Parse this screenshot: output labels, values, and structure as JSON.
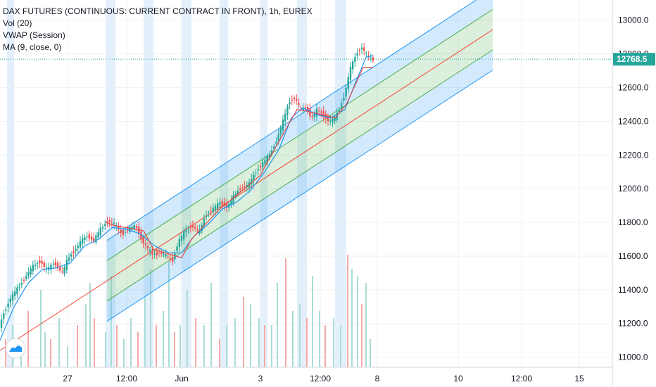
{
  "chart_data": {
    "type": "candlestick",
    "title": "DAX FUTURES (CONTINUOUS: CURRENT CONTRACT IN FRONT), 1h, EUREX",
    "indicators": [
      "Vol (20)",
      "VWAP (Session)",
      "MA (9, close, 0)"
    ],
    "last_price": "12768.5",
    "last_price_value": 12768.5,
    "ylim": [
      10940,
      13120
    ],
    "xlim": [
      0,
      870
    ],
    "y_ticks": [
      {
        "value": 11000,
        "label": "11000.0"
      },
      {
        "value": 11200,
        "label": "11200.0"
      },
      {
        "value": 11400,
        "label": "11400.0"
      },
      {
        "value": 11600,
        "label": "11600.0"
      },
      {
        "value": 11800,
        "label": "11800.0"
      },
      {
        "value": 12000,
        "label": "12000.0"
      },
      {
        "value": 12200,
        "label": "12200.0"
      },
      {
        "value": 12400,
        "label": "12400.0"
      },
      {
        "value": 12600,
        "label": "12600.0"
      },
      {
        "value": 12800,
        "label": "12800.0"
      },
      {
        "value": 13000,
        "label": "13000.0"
      }
    ],
    "x_ticks": [
      {
        "t": 96,
        "label": "27"
      },
      {
        "t": 180,
        "label": "12:00"
      },
      {
        "t": 258,
        "label": "Jun"
      },
      {
        "t": 370,
        "label": "3"
      },
      {
        "t": 455,
        "label": "12:00"
      },
      {
        "t": 536,
        "label": "8"
      },
      {
        "t": 651,
        "label": "10"
      },
      {
        "t": 741,
        "label": "12:00"
      },
      {
        "t": 823,
        "label": "15"
      }
    ],
    "session_bands": [
      [
        10,
        20
      ],
      [
        150,
        164
      ],
      [
        204,
        218
      ],
      [
        258,
        272
      ],
      [
        312,
        324
      ],
      [
        370,
        380
      ],
      [
        422,
        436
      ],
      [
        476,
        492
      ]
    ],
    "price_path": [
      [
        0,
        11150
      ],
      [
        8,
        11260
      ],
      [
        18,
        11350
      ],
      [
        30,
        11420
      ],
      [
        40,
        11480
      ],
      [
        50,
        11540
      ],
      [
        60,
        11570
      ],
      [
        70,
        11520
      ],
      [
        80,
        11560
      ],
      [
        92,
        11500
      ],
      [
        100,
        11590
      ],
      [
        110,
        11640
      ],
      [
        120,
        11700
      ],
      [
        128,
        11720
      ],
      [
        136,
        11690
      ],
      [
        146,
        11760
      ],
      [
        156,
        11810
      ],
      [
        166,
        11790
      ],
      [
        176,
        11730
      ],
      [
        186,
        11760
      ],
      [
        196,
        11780
      ],
      [
        204,
        11700
      ],
      [
        212,
        11650
      ],
      [
        220,
        11610
      ],
      [
        230,
        11620
      ],
      [
        240,
        11600
      ],
      [
        248,
        11570
      ],
      [
        256,
        11680
      ],
      [
        266,
        11750
      ],
      [
        276,
        11780
      ],
      [
        286,
        11740
      ],
      [
        296,
        11850
      ],
      [
        306,
        11880
      ],
      [
        316,
        11920
      ],
      [
        326,
        11890
      ],
      [
        336,
        11960
      ],
      [
        346,
        12010
      ],
      [
        356,
        12020
      ],
      [
        366,
        12100
      ],
      [
        376,
        12150
      ],
      [
        386,
        12200
      ],
      [
        396,
        12290
      ],
      [
        406,
        12410
      ],
      [
        414,
        12520
      ],
      [
        422,
        12540
      ],
      [
        430,
        12470
      ],
      [
        438,
        12480
      ],
      [
        446,
        12420
      ],
      [
        454,
        12470
      ],
      [
        462,
        12440
      ],
      [
        470,
        12400
      ],
      [
        478,
        12410
      ],
      [
        486,
        12480
      ],
      [
        494,
        12580
      ],
      [
        500,
        12700
      ],
      [
        506,
        12770
      ],
      [
        512,
        12820
      ],
      [
        518,
        12840
      ],
      [
        524,
        12790
      ],
      [
        530,
        12768
      ]
    ],
    "ma_path": [
      [
        0,
        11100
      ],
      [
        20,
        11300
      ],
      [
        40,
        11440
      ],
      [
        60,
        11520
      ],
      [
        80,
        11530
      ],
      [
        100,
        11560
      ],
      [
        120,
        11660
      ],
      [
        140,
        11700
      ],
      [
        160,
        11770
      ],
      [
        180,
        11760
      ],
      [
        200,
        11730
      ],
      [
        220,
        11660
      ],
      [
        240,
        11620
      ],
      [
        258,
        11620
      ],
      [
        276,
        11720
      ],
      [
        296,
        11790
      ],
      [
        316,
        11880
      ],
      [
        336,
        11920
      ],
      [
        356,
        11990
      ],
      [
        376,
        12100
      ],
      [
        396,
        12230
      ],
      [
        414,
        12420
      ],
      [
        430,
        12480
      ],
      [
        450,
        12440
      ],
      [
        470,
        12420
      ],
      [
        490,
        12470
      ],
      [
        506,
        12640
      ],
      [
        520,
        12780
      ],
      [
        530,
        12790
      ]
    ],
    "vwap_path": [
      [
        150,
        11800
      ],
      [
        164,
        11780
      ],
      [
        204,
        11750
      ],
      [
        218,
        11640
      ],
      [
        258,
        11590
      ],
      [
        272,
        11700
      ],
      [
        312,
        11880
      ],
      [
        324,
        11920
      ],
      [
        370,
        12080
      ],
      [
        380,
        12160
      ],
      [
        422,
        12470
      ],
      [
        436,
        12460
      ],
      [
        476,
        12420
      ],
      [
        492,
        12500
      ],
      [
        516,
        12720
      ],
      [
        530,
        12720
      ]
    ],
    "regression_channel": {
      "t_start": 0,
      "t_end": 700,
      "mid_start": 11040,
      "slope_per_unit": 2.72,
      "inner_offset": 120,
      "outer_offset": 240,
      "fill_start": 152
    },
    "volume": [
      [
        8,
        40
      ],
      [
        18,
        60
      ],
      [
        30,
        30
      ],
      [
        40,
        80
      ],
      [
        58,
        110
      ],
      [
        64,
        50
      ],
      [
        72,
        40
      ],
      [
        84,
        70
      ],
      [
        96,
        30
      ],
      [
        110,
        60
      ],
      [
        122,
        90
      ],
      [
        128,
        120
      ],
      [
        134,
        70
      ],
      [
        150,
        50
      ],
      [
        158,
        130
      ],
      [
        166,
        60
      ],
      [
        176,
        40
      ],
      [
        186,
        70
      ],
      [
        196,
        50
      ],
      [
        206,
        100
      ],
      [
        214,
        140
      ],
      [
        222,
        60
      ],
      [
        232,
        80
      ],
      [
        240,
        150
      ],
      [
        248,
        50
      ],
      [
        256,
        60
      ],
      [
        266,
        110
      ],
      [
        278,
        70
      ],
      [
        290,
        60
      ],
      [
        300,
        120
      ],
      [
        312,
        40
      ],
      [
        322,
        60
      ],
      [
        334,
        70
      ],
      [
        346,
        100
      ],
      [
        356,
        90
      ],
      [
        368,
        70
      ],
      [
        376,
        60
      ],
      [
        386,
        60
      ],
      [
        394,
        120
      ],
      [
        406,
        155
      ],
      [
        416,
        80
      ],
      [
        426,
        90
      ],
      [
        436,
        70
      ],
      [
        444,
        130
      ],
      [
        454,
        80
      ],
      [
        462,
        60
      ],
      [
        474,
        70
      ],
      [
        484,
        60
      ],
      [
        494,
        160
      ],
      [
        500,
        140
      ],
      [
        508,
        130
      ],
      [
        514,
        90
      ],
      [
        520,
        120
      ],
      [
        526,
        40
      ]
    ]
  }
}
